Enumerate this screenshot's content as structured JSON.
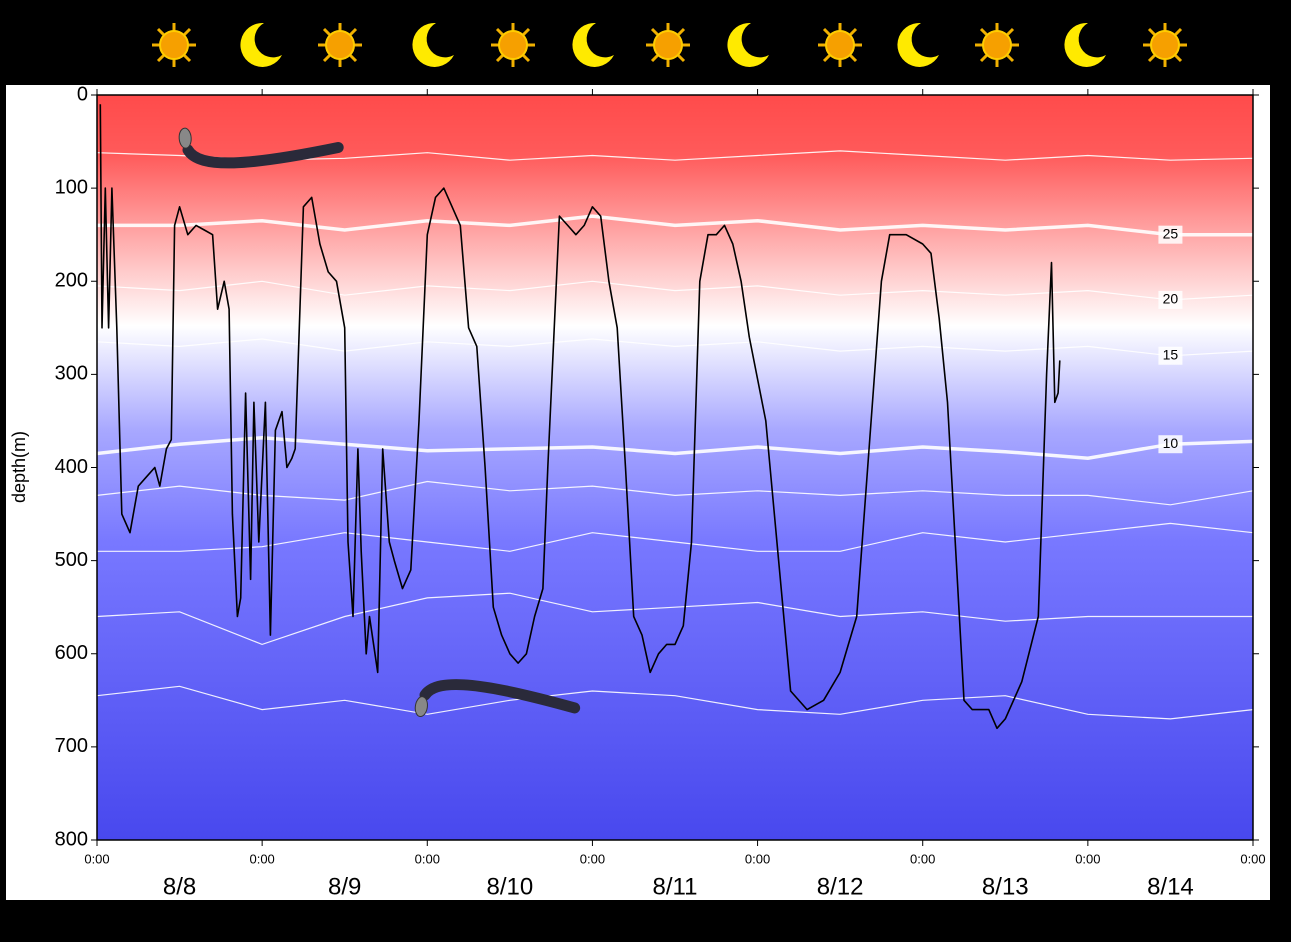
{
  "chart_data": {
    "type": "line",
    "y_label": "depth(m)",
    "ylim": [
      800,
      0
    ],
    "yticks": [
      0,
      100,
      200,
      300,
      400,
      500,
      600,
      700,
      800
    ],
    "xlim": [
      0,
      7
    ],
    "xticks": [
      {
        "value": 0,
        "label": "0:00"
      },
      {
        "value": 1,
        "label": "0:00"
      },
      {
        "value": 2,
        "label": "0:00"
      },
      {
        "value": 3,
        "label": "0:00"
      },
      {
        "value": 4,
        "label": "0:00"
      },
      {
        "value": 5,
        "label": "0:00"
      },
      {
        "value": 6,
        "label": "0:00"
      },
      {
        "value": 7,
        "label": "0:00"
      }
    ],
    "categories": [
      "8/8",
      "8/9",
      "8/10",
      "8/11",
      "8/12",
      "8/13",
      "8/14"
    ],
    "series": [
      {
        "color": "#000000",
        "x": [
          0.02,
          0.03,
          0.05,
          0.07,
          0.09,
          0.12,
          0.15,
          0.2,
          0.25,
          0.3,
          0.35,
          0.38,
          0.42,
          0.45,
          0.47,
          0.5,
          0.55,
          0.6,
          0.65,
          0.7,
          0.73,
          0.77,
          0.8,
          0.82,
          0.85,
          0.87,
          0.9,
          0.93,
          0.95,
          0.98,
          1.02,
          1.05,
          1.08,
          1.12,
          1.15,
          1.18,
          1.2,
          1.25,
          1.3,
          1.35,
          1.4,
          1.45,
          1.5,
          1.52,
          1.55,
          1.58,
          1.6,
          1.63,
          1.65,
          1.7,
          1.73,
          1.77,
          1.8,
          1.85,
          1.9,
          1.95,
          2,
          2.05,
          2.1,
          2.15,
          2.2,
          2.25,
          2.3,
          2.35,
          2.4,
          2.45,
          2.5,
          2.55,
          2.6,
          2.65,
          2.7,
          2.73,
          2.8,
          2.85,
          2.9,
          2.95,
          3,
          3.05,
          3.1,
          3.15,
          3.2,
          3.25,
          3.3,
          3.35,
          3.4,
          3.45,
          3.5,
          3.55,
          3.6,
          3.65,
          3.7,
          3.75,
          3.8,
          3.85,
          3.9,
          3.95,
          4.05,
          4.2,
          4.3,
          4.4,
          4.5,
          4.55,
          4.6,
          4.75,
          4.8,
          4.9,
          5,
          5.05,
          5.1,
          5.15,
          5.25,
          5.3,
          5.4,
          5.45,
          5.5,
          5.6,
          5.7,
          5.75,
          5.78,
          5.8,
          5.82,
          5.83
        ],
        "values": [
          10,
          250,
          100,
          250,
          100,
          250,
          450,
          470,
          420,
          410,
          400,
          420,
          380,
          370,
          140,
          120,
          150,
          140,
          145,
          150,
          230,
          200,
          230,
          450,
          560,
          540,
          320,
          520,
          330,
          480,
          330,
          580,
          360,
          340,
          400,
          390,
          380,
          120,
          110,
          160,
          190,
          200,
          250,
          480,
          560,
          380,
          490,
          600,
          560,
          620,
          380,
          480,
          500,
          530,
          510,
          350,
          150,
          110,
          100,
          120,
          140,
          250,
          270,
          400,
          550,
          580,
          600,
          610,
          600,
          560,
          530,
          400,
          130,
          140,
          150,
          140,
          120,
          130,
          200,
          250,
          400,
          560,
          580,
          620,
          600,
          590,
          590,
          570,
          480,
          200,
          150,
          150,
          140,
          160,
          200,
          260,
          350,
          640,
          660,
          650,
          620,
          590,
          560,
          200,
          150,
          150,
          160,
          170,
          240,
          330,
          650,
          660,
          660,
          680,
          670,
          630,
          560,
          300,
          180,
          330,
          320,
          285
        ]
      }
    ],
    "contour_x": [
      0,
      0.5,
      1,
      1.5,
      2,
      2.5,
      3,
      3.5,
      4,
      4.5,
      5,
      5.5,
      6,
      6.5,
      7
    ],
    "contours": [
      {
        "values": [
          62,
          65,
          70,
          68,
          62,
          70,
          65,
          70,
          65,
          60,
          65,
          70,
          65,
          70,
          68
        ]
      },
      {
        "label": "25",
        "thick": true,
        "values": [
          140,
          140,
          135,
          145,
          135,
          140,
          130,
          140,
          135,
          145,
          140,
          145,
          140,
          150,
          150
        ]
      },
      {
        "label": "20",
        "values": [
          205,
          210,
          200,
          215,
          205,
          210,
          200,
          210,
          205,
          215,
          210,
          215,
          210,
          220,
          215
        ]
      },
      {
        "label": "15",
        "values": [
          265,
          270,
          262,
          275,
          265,
          270,
          262,
          270,
          265,
          275,
          270,
          275,
          270,
          280,
          275
        ]
      },
      {
        "label": "10",
        "thick": true,
        "values": [
          385,
          375,
          368,
          375,
          382,
          380,
          378,
          385,
          378,
          385,
          378,
          383,
          390,
          375,
          372
        ]
      },
      {
        "values": [
          430,
          420,
          430,
          435,
          415,
          425,
          420,
          430,
          425,
          430,
          425,
          430,
          430,
          440,
          425
        ]
      },
      {
        "values": [
          490,
          490,
          485,
          470,
          480,
          490,
          470,
          480,
          490,
          490,
          470,
          480,
          470,
          460,
          470
        ]
      },
      {
        "values": [
          560,
          555,
          590,
          560,
          540,
          535,
          555,
          550,
          545,
          560,
          555,
          565,
          560,
          560,
          560
        ]
      },
      {
        "values": [
          645,
          635,
          660,
          650,
          665,
          650,
          640,
          645,
          660,
          665,
          650,
          645,
          665,
          670,
          660
        ]
      }
    ]
  }
}
